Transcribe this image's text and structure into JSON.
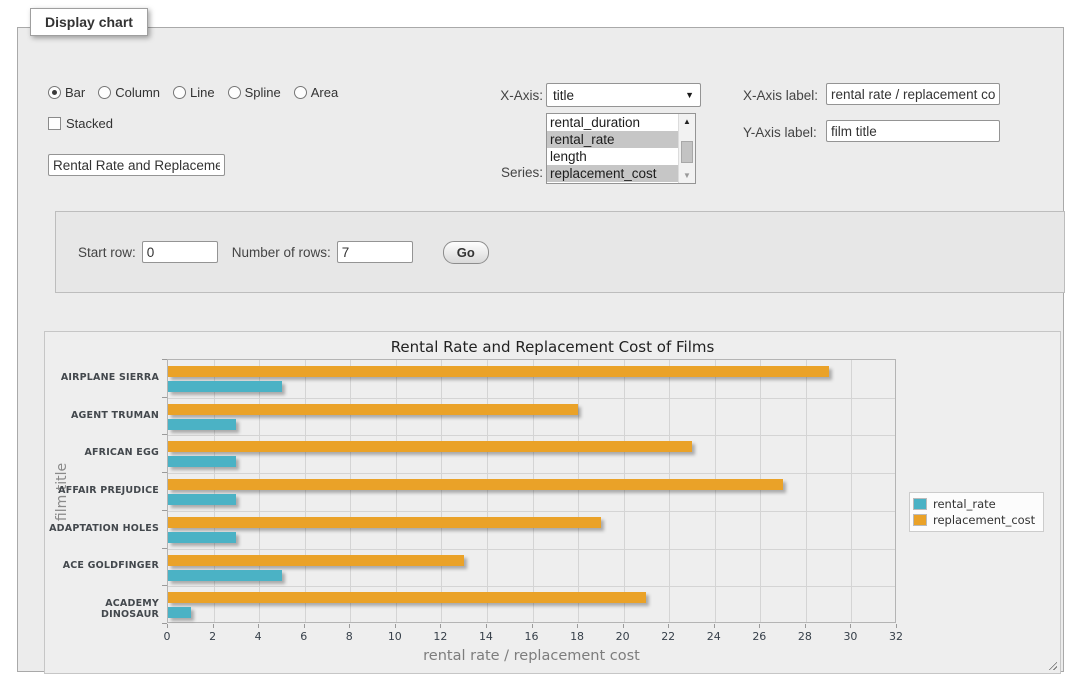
{
  "window": {
    "legend_title": "Display chart"
  },
  "controls": {
    "chart_type_options": [
      {
        "label": "Bar",
        "selected": true
      },
      {
        "label": "Column",
        "selected": false
      },
      {
        "label": "Line",
        "selected": false
      },
      {
        "label": "Spline",
        "selected": false
      },
      {
        "label": "Area",
        "selected": false
      }
    ],
    "stacked": {
      "label": "Stacked",
      "checked": false
    },
    "chart_title_input": {
      "value": "Rental Rate and Replacement Cost of Films"
    },
    "x_axis": {
      "label": "X-Axis:",
      "selected_value": "title"
    },
    "series_picker": {
      "label": "Series:",
      "options": [
        {
          "label": "rental_duration",
          "selected": false
        },
        {
          "label": "rental_rate",
          "selected": true
        },
        {
          "label": "length",
          "selected": false
        },
        {
          "label": "replacement_cost",
          "selected": true
        }
      ]
    },
    "x_axis_label": {
      "label": "X-Axis label:",
      "value": "rental rate / replacement cost"
    },
    "y_axis_label": {
      "label": "Y-Axis label:",
      "value": "film title"
    }
  },
  "rows_panel": {
    "start_row_label": "Start row:",
    "start_row_value": "0",
    "num_rows_label": "Number of rows:",
    "num_rows_value": "7",
    "go_label": "Go"
  },
  "chart_data": {
    "type": "bar",
    "orientation": "horizontal",
    "title": "Rental Rate and Replacement Cost of Films",
    "xlabel": "rental rate / replacement cost",
    "ylabel": "film title",
    "categories": [
      "AIRPLANE SIERRA",
      "AGENT TRUMAN",
      "AFRICAN EGG",
      "AFFAIR PREJUDICE",
      "ADAPTATION HOLES",
      "ACE GOLDFINGER",
      "ACADEMY DINOSAUR"
    ],
    "series": [
      {
        "name": "rental_rate",
        "color": "#4bb2c5",
        "values": [
          5,
          3,
          3,
          3,
          3,
          5,
          1
        ]
      },
      {
        "name": "replacement_cost",
        "color": "#eaa228",
        "values": [
          29,
          18,
          23,
          27,
          19,
          13,
          21
        ]
      }
    ],
    "xlim": [
      0,
      32
    ],
    "x_tick_step": 2,
    "grid": true,
    "legend_position": "right"
  }
}
